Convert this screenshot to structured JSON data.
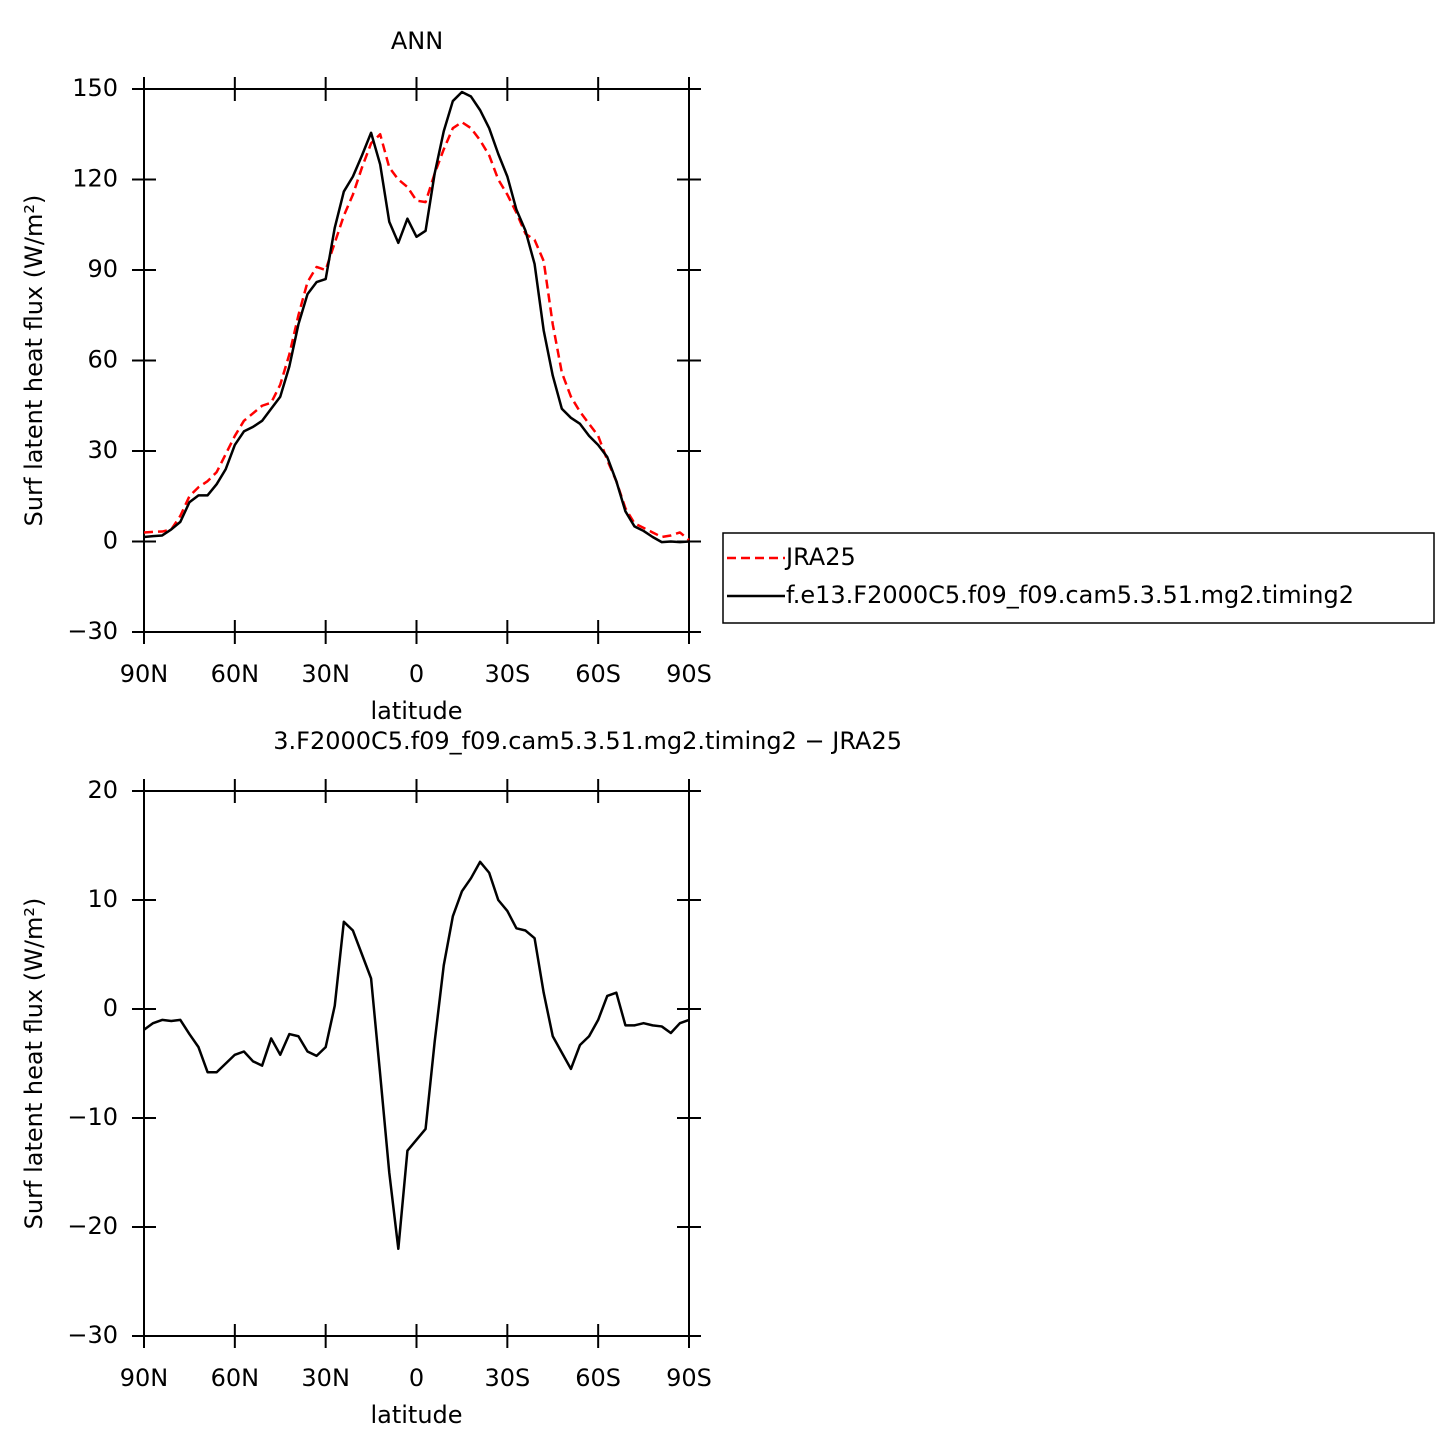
{
  "chart_data": [
    {
      "type": "line",
      "title": "ANN",
      "xlabel": "latitude",
      "ylabel": "Surf latent heat flux (W/m²)",
      "x": [
        90,
        87,
        84,
        81,
        78,
        75,
        72,
        69,
        66,
        63,
        60,
        57,
        54,
        51,
        48,
        45,
        42,
        39,
        36,
        33,
        30,
        27,
        24,
        21,
        18,
        15,
        12,
        9,
        6,
        3,
        0,
        -3,
        -6,
        -9,
        -12,
        -15,
        -18,
        -21,
        -24,
        -27,
        -30,
        -33,
        -36,
        -39,
        -42,
        -45,
        -48,
        -51,
        -54,
        -57,
        -60,
        -63,
        -66,
        -69,
        -72,
        -75,
        -78,
        -81,
        -84,
        -87,
        -90
      ],
      "xlim": [
        90,
        -90
      ],
      "xticks": [
        {
          "value": 90,
          "label": "90N"
        },
        {
          "value": 60,
          "label": "60N"
        },
        {
          "value": 30,
          "label": "30N"
        },
        0,
        {
          "value": -30,
          "label": "30S"
        },
        {
          "value": -60,
          "label": "60S"
        },
        {
          "value": -90,
          "label": "90S"
        }
      ],
      "ylim": [
        -30,
        150
      ],
      "yticks": [
        {
          "value": -30,
          "label": "−30"
        },
        0,
        30,
        60,
        90,
        120,
        150
      ],
      "legend": "right",
      "series": [
        {
          "name": "JRA25",
          "color": "#ff0000",
          "dash": true,
          "values": [
            3,
            3.2,
            3.3,
            4,
            8.5,
            15,
            18,
            20,
            23,
            29,
            35,
            40,
            42.5,
            45,
            46,
            52,
            62,
            75,
            86,
            91,
            90,
            99,
            108,
            115,
            124,
            132,
            135,
            124,
            120,
            117.5,
            113,
            112.5,
            122,
            130,
            137,
            139,
            137,
            133,
            128,
            120,
            115,
            109,
            102,
            100,
            93,
            72,
            56,
            48,
            43,
            39,
            35,
            27,
            20,
            11,
            6,
            4.5,
            3,
            1.5,
            2,
            3,
            0.5
          ]
        },
        {
          "name": "f.e13.F2000C5.f09_f09.cam5.3.51.mg2.timing2",
          "color": "#000000",
          "dash": false,
          "values": [
            1.5,
            1.8,
            2,
            4,
            6.5,
            13,
            15.3,
            15.3,
            19,
            24,
            32,
            36.5,
            38,
            40,
            44,
            48,
            58,
            72,
            82,
            86,
            87,
            104,
            116,
            121,
            128,
            135.5,
            125,
            106,
            99,
            107,
            101,
            103,
            122,
            136,
            146,
            149,
            147.5,
            143,
            137,
            128.5,
            121,
            110,
            103,
            92,
            70,
            55,
            44,
            41,
            39,
            35,
            32,
            28,
            20,
            10,
            5,
            3.5,
            1.5,
            -0.2,
            0,
            -0.2,
            0
          ]
        }
      ]
    },
    {
      "type": "line",
      "title": "3.F2000C5.f09_f09.cam5.3.51.mg2.timing2 − JRA25",
      "xlabel": "latitude",
      "ylabel": "Surf latent heat flux (W/m²)",
      "x": [
        90,
        87,
        84,
        81,
        78,
        75,
        72,
        69,
        66,
        63,
        60,
        57,
        54,
        51,
        48,
        45,
        42,
        39,
        36,
        33,
        30,
        27,
        24,
        21,
        18,
        15,
        12,
        9,
        6,
        3,
        0,
        -3,
        -6,
        -9,
        -12,
        -15,
        -18,
        -21,
        -24,
        -27,
        -30,
        -33,
        -36,
        -39,
        -42,
        -45,
        -48,
        -51,
        -54,
        -57,
        -60,
        -63,
        -66,
        -69,
        -72,
        -75,
        -78,
        -81,
        -84,
        -87,
        -90
      ],
      "xlim": [
        90,
        -90
      ],
      "xticks": [
        {
          "value": 90,
          "label": "90N"
        },
        {
          "value": 60,
          "label": "60N"
        },
        {
          "value": 30,
          "label": "30N"
        },
        0,
        {
          "value": -30,
          "label": "30S"
        },
        {
          "value": -60,
          "label": "60S"
        },
        {
          "value": -90,
          "label": "90S"
        }
      ],
      "ylim": [
        -30,
        20
      ],
      "yticks": [
        {
          "value": -30,
          "label": "−30"
        },
        {
          "value": -20,
          "label": "−20"
        },
        {
          "value": -10,
          "label": "−10"
        },
        0,
        10,
        20
      ],
      "series": [
        {
          "color": "#000000",
          "dash": false,
          "values": [
            -1.9,
            -1.3,
            -1,
            -1.1,
            -1,
            -2.3,
            -3.5,
            -5.8,
            -5.8,
            -5,
            -4.2,
            -3.9,
            -4.8,
            -5.2,
            -2.7,
            -4.2,
            -2.3,
            -2.5,
            -3.9,
            -4.3,
            -3.5,
            0.3,
            8,
            7.2,
            5,
            2.8,
            -6,
            -15,
            -22,
            -13,
            -12,
            -11,
            -3,
            4,
            8.5,
            10.8,
            12,
            13.5,
            12.5,
            10,
            9,
            7.4,
            7.2,
            6.5,
            1.5,
            -2.5,
            -4,
            -5.5,
            -3.3,
            -2.5,
            -1,
            1.2,
            1.5,
            -1.5,
            -1.5,
            -1.3,
            -1.5,
            -1.6,
            -2.2,
            -1.3,
            -1
          ]
        }
      ]
    }
  ]
}
